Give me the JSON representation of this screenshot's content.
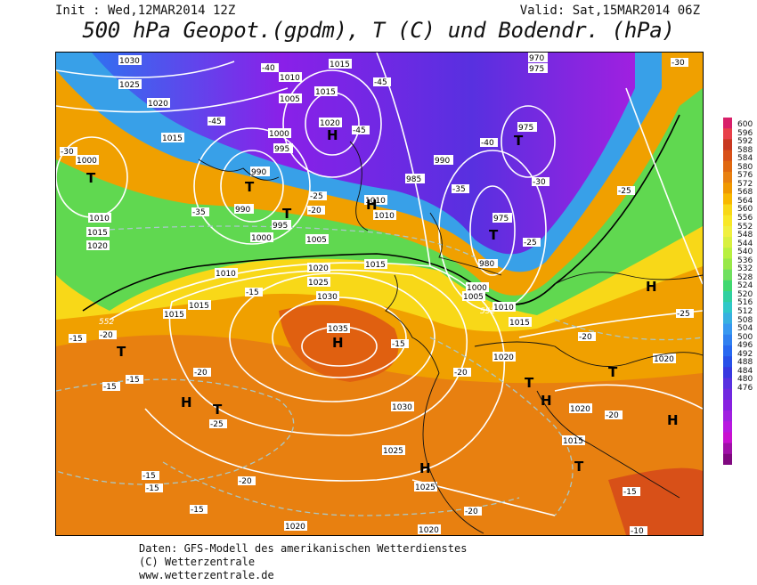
{
  "header": {
    "init": "Init : Wed,12MAR2014 12Z",
    "valid": "Valid: Sat,15MAR2014 06Z",
    "title": "500 hPa Geopot.(gpdm), T (C) und Bodendr. (hPa)"
  },
  "scale": {
    "labels": [
      "600",
      "596",
      "592",
      "588",
      "584",
      "580",
      "576",
      "572",
      "568",
      "564",
      "560",
      "556",
      "552",
      "548",
      "544",
      "540",
      "536",
      "532",
      "528",
      "524",
      "520",
      "516",
      "512",
      "508",
      "504",
      "500",
      "496",
      "492",
      "488",
      "484",
      "480",
      "476"
    ],
    "colors": [
      "#d8206a",
      "#e8404a",
      "#c83820",
      "#d85018",
      "#e06810",
      "#e88010",
      "#f09800",
      "#f8b800",
      "#f8d818",
      "#f8e828",
      "#f0f040",
      "#d8f040",
      "#b8f040",
      "#98e848",
      "#70e060",
      "#40d870",
      "#30d0a0",
      "#30c8c8",
      "#38b0e0",
      "#3898f0",
      "#3080f0",
      "#2868f0",
      "#2850e8",
      "#3838e0",
      "#5830e0",
      "#7028e0",
      "#8820e0",
      "#a020e0",
      "#b818e0",
      "#c810d0",
      "#a010a8",
      "#800880"
    ]
  },
  "map": {
    "pressure_labels": [
      "1030",
      "1025",
      "1020",
      "1015",
      "1010",
      "1005",
      "1000",
      "995",
      "990",
      "985",
      "980",
      "975",
      "970",
      "1035"
    ],
    "temp_labels": [
      "-40",
      "-45",
      "-35",
      "-30",
      "-25",
      "-20",
      "-15",
      "-10"
    ],
    "highs_lows": [
      "H",
      "T"
    ],
    "contour_552": "552"
  },
  "footer": {
    "line1": "Daten: GFS-Modell des amerikanischen Wetterdienstes",
    "line2": "(C) Wetterzentrale",
    "line3": "www.wetterzentrale.de"
  }
}
